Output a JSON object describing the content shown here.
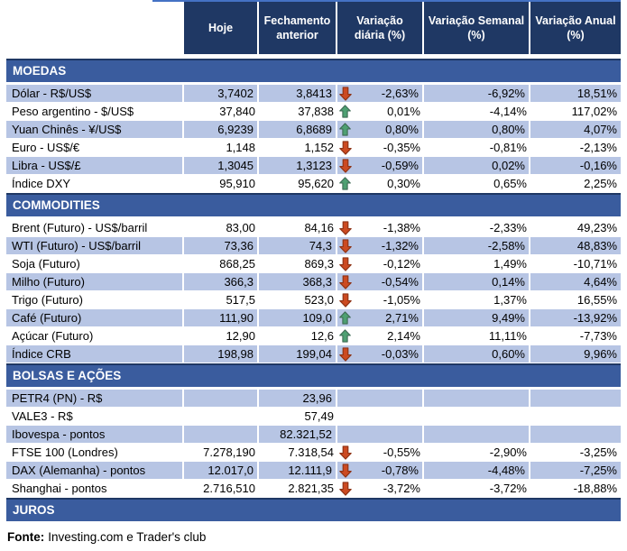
{
  "header": {
    "columns": [
      "Hoje",
      "Fechamento anterior",
      "Variação diária (%)",
      "Variação Semanal (%)",
      "Variação Anual (%)"
    ]
  },
  "sections": [
    {
      "title": "MOEDAS",
      "rows": [
        {
          "label": "Dólar - R$/US$",
          "hoje": "3,7402",
          "fechamento": "3,8413",
          "arrow": "down",
          "var_diaria": "-2,63%",
          "var_semanal": "-6,92%",
          "var_anual": "18,51%"
        },
        {
          "label": "Peso argentino - $/US$",
          "hoje": "37,840",
          "fechamento": "37,838",
          "arrow": "up",
          "var_diaria": "0,01%",
          "var_semanal": "-4,14%",
          "var_anual": "117,02%"
        },
        {
          "label": "Yuan Chinês - ¥/US$",
          "hoje": "6,9239",
          "fechamento": "6,8689",
          "arrow": "up",
          "var_diaria": "0,80%",
          "var_semanal": "0,80%",
          "var_anual": "4,07%"
        },
        {
          "label": "Euro - US$/€",
          "hoje": "1,148",
          "fechamento": "1,152",
          "arrow": "down",
          "var_diaria": "-0,35%",
          "var_semanal": "-0,81%",
          "var_anual": "-2,13%"
        },
        {
          "label": "Libra - US$/£",
          "hoje": "1,3045",
          "fechamento": "1,3123",
          "arrow": "down",
          "var_diaria": "-0,59%",
          "var_semanal": "0,02%",
          "var_anual": "-0,16%"
        },
        {
          "label": "Índice DXY",
          "hoje": "95,910",
          "fechamento": "95,620",
          "arrow": "up",
          "var_diaria": "0,30%",
          "var_semanal": "0,65%",
          "var_anual": "2,25%"
        }
      ]
    },
    {
      "title": "COMMODITIES",
      "rows": [
        {
          "label": "Brent (Futuro) - US$/barril",
          "hoje": "83,00",
          "fechamento": "84,16",
          "arrow": "down",
          "var_diaria": "-1,38%",
          "var_semanal": "-2,33%",
          "var_anual": "49,23%"
        },
        {
          "label": "WTI (Futuro) - US$/barril",
          "hoje": "73,36",
          "fechamento": "74,3",
          "arrow": "down",
          "var_diaria": "-1,32%",
          "var_semanal": "-2,58%",
          "var_anual": "48,83%"
        },
        {
          "label": "Soja (Futuro)",
          "hoje": "868,25",
          "fechamento": "869,3",
          "arrow": "down",
          "var_diaria": "-0,12%",
          "var_semanal": "1,49%",
          "var_anual": "-10,71%"
        },
        {
          "label": "Milho (Futuro)",
          "hoje": "366,3",
          "fechamento": "368,3",
          "arrow": "down",
          "var_diaria": "-0,54%",
          "var_semanal": "0,14%",
          "var_anual": "4,64%"
        },
        {
          "label": "Trigo (Futuro)",
          "hoje": "517,5",
          "fechamento": "523,0",
          "arrow": "down",
          "var_diaria": "-1,05%",
          "var_semanal": "1,37%",
          "var_anual": "16,55%"
        },
        {
          "label": "Café (Futuro)",
          "hoje": "111,90",
          "fechamento": "109,0",
          "arrow": "up",
          "var_diaria": "2,71%",
          "var_semanal": "9,49%",
          "var_anual": "-13,92%"
        },
        {
          "label": "Açúcar (Futuro)",
          "hoje": "12,90",
          "fechamento": "12,6",
          "arrow": "up",
          "var_diaria": "2,14%",
          "var_semanal": "11,11%",
          "var_anual": "-7,73%"
        },
        {
          "label": "Índice CRB",
          "hoje": "198,98",
          "fechamento": "199,04",
          "arrow": "down",
          "var_diaria": "-0,03%",
          "var_semanal": "0,60%",
          "var_anual": "9,96%"
        }
      ]
    },
    {
      "title": "BOLSAS E AÇÕES",
      "rows": [
        {
          "label": "PETR4 (PN) - R$",
          "hoje": "",
          "fechamento": "23,96",
          "arrow": null,
          "var_diaria": "",
          "var_semanal": "",
          "var_anual": ""
        },
        {
          "label": "VALE3 - R$",
          "hoje": "",
          "fechamento": "57,49",
          "arrow": null,
          "var_diaria": "",
          "var_semanal": "",
          "var_anual": ""
        },
        {
          "label": "Ibovespa - pontos",
          "hoje": "",
          "fechamento": "82.321,52",
          "arrow": null,
          "var_diaria": "",
          "var_semanal": "",
          "var_anual": ""
        },
        {
          "label": "FTSE 100 (Londres)",
          "hoje": "7.278,190",
          "fechamento": "7.318,54",
          "arrow": "down",
          "var_diaria": "-0,55%",
          "var_semanal": "-2,90%",
          "var_anual": "-3,25%"
        },
        {
          "label": "DAX (Alemanha) - pontos",
          "hoje": "12.017,0",
          "fechamento": "12.111,9",
          "arrow": "down",
          "var_diaria": "-0,78%",
          "var_semanal": "-4,48%",
          "var_anual": "-7,25%"
        },
        {
          "label": "Shanghai - pontos",
          "hoje": "2.716,510",
          "fechamento": "2.821,35",
          "arrow": "down",
          "var_diaria": "-3,72%",
          "var_semanal": "-3,72%",
          "var_anual": "-18,88%"
        }
      ]
    },
    {
      "title": "JUROS",
      "rows": []
    }
  ],
  "footer": {
    "label": "Fonte:",
    "text": "Investing.com e Trader's club"
  },
  "icons": {
    "up": "up-arrow-icon",
    "down": "down-arrow-icon"
  },
  "colors": {
    "header_bg": "#1F3864",
    "section_band_bg": "#3A5C9E",
    "section_band_border": "#1F3864",
    "row_stripe": "#B7C5E4",
    "top_border_line": "#4472C4",
    "up_arrow": "#4EA072",
    "up_arrow_outline": "#3D6A54",
    "down_arrow": "#CC4A21",
    "down_arrow_outline": "#8E3316",
    "header_text": "#FFFFFF",
    "body_text": "#000000"
  }
}
